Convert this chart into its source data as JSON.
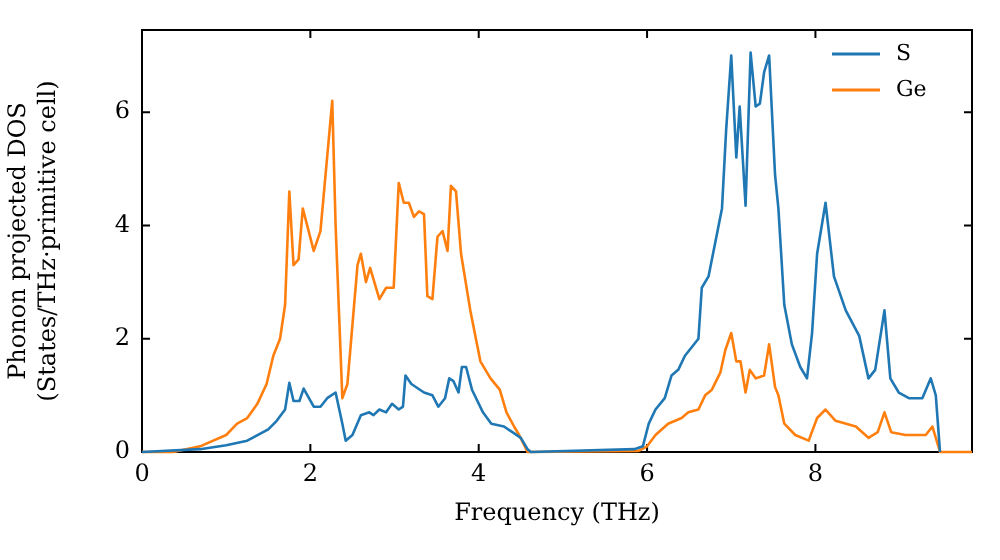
{
  "chart_data": {
    "type": "line",
    "xlabel": "Frequency (THz)",
    "ylabel": "Phonon projected DOS\n(States/THz·primitive cell)",
    "xlim": [
      0,
      9.86
    ],
    "ylim": [
      0,
      7.45
    ],
    "xticks": [
      0,
      2,
      4,
      6,
      8
    ],
    "yticks": [
      0,
      2,
      4,
      6
    ],
    "grid": false,
    "legend": "top right",
    "marker": "none",
    "line_style": "solid",
    "series": [
      {
        "name": "S",
        "color": "#1f77b4",
        "x": [
          0,
          0.69,
          1.0,
          1.25,
          1.5,
          1.6,
          1.7,
          1.75,
          1.8,
          1.87,
          1.92,
          2.04,
          2.12,
          2.2,
          2.3,
          2.38,
          2.42,
          2.5,
          2.6,
          2.7,
          2.75,
          2.82,
          2.9,
          2.97,
          3.05,
          3.1,
          3.13,
          3.2,
          3.35,
          3.45,
          3.52,
          3.6,
          3.65,
          3.7,
          3.76,
          3.8,
          3.85,
          3.92,
          4.05,
          4.15,
          4.3,
          4.4,
          4.5,
          4.58,
          4.62,
          5.85,
          5.95,
          6.02,
          6.1,
          6.21,
          6.29,
          6.37,
          6.45,
          6.53,
          6.61,
          6.65,
          6.73,
          6.81,
          6.89,
          6.94,
          7.0,
          7.06,
          7.1,
          7.17,
          7.23,
          7.29,
          7.34,
          7.39,
          7.45,
          7.52,
          7.56,
          7.63,
          7.72,
          7.82,
          7.9,
          7.96,
          8.02,
          8.12,
          8.22,
          8.36,
          8.52,
          8.63,
          8.71,
          8.82,
          8.89,
          8.99,
          9.11,
          9.27,
          9.37,
          9.43,
          9.48
        ],
        "values": [
          0,
          0.05,
          0.12,
          0.2,
          0.4,
          0.55,
          0.75,
          1.22,
          0.9,
          0.9,
          1.12,
          0.8,
          0.8,
          0.95,
          1.05,
          0.5,
          0.2,
          0.3,
          0.65,
          0.7,
          0.65,
          0.75,
          0.7,
          0.85,
          0.75,
          0.8,
          1.35,
          1.2,
          1.05,
          1.0,
          0.8,
          0.95,
          1.3,
          1.25,
          1.05,
          1.5,
          1.5,
          1.1,
          0.7,
          0.5,
          0.45,
          0.35,
          0.25,
          0.05,
          0,
          0.05,
          0.1,
          0.5,
          0.75,
          0.95,
          1.35,
          1.45,
          1.7,
          1.85,
          2.0,
          2.9,
          3.1,
          3.7,
          4.3,
          5.7,
          7.0,
          5.2,
          6.1,
          4.35,
          7.05,
          6.1,
          6.15,
          6.7,
          7.0,
          4.9,
          4.3,
          2.6,
          1.9,
          1.5,
          1.3,
          2.1,
          3.5,
          4.4,
          3.1,
          2.5,
          2.05,
          1.3,
          1.45,
          2.5,
          1.3,
          1.05,
          0.95,
          0.95,
          1.3,
          1.0,
          0
        ]
      },
      {
        "name": "Ge",
        "color": "#ff7f0e",
        "x": [
          0,
          0.37,
          0.69,
          1.0,
          1.13,
          1.25,
          1.37,
          1.48,
          1.56,
          1.64,
          1.7,
          1.75,
          1.8,
          1.86,
          1.91,
          2.04,
          2.12,
          2.26,
          2.3,
          2.38,
          2.44,
          2.56,
          2.6,
          2.66,
          2.71,
          2.82,
          2.9,
          2.99,
          3.05,
          3.11,
          3.17,
          3.23,
          3.29,
          3.35,
          3.39,
          3.45,
          3.51,
          3.57,
          3.63,
          3.67,
          3.73,
          3.79,
          3.9,
          4.02,
          4.14,
          4.25,
          4.33,
          4.42,
          4.48,
          4.58,
          5.9,
          6.0,
          6.1,
          6.25,
          6.41,
          6.49,
          6.61,
          6.69,
          6.77,
          6.87,
          6.93,
          7.0,
          7.06,
          7.11,
          7.17,
          7.22,
          7.29,
          7.39,
          7.45,
          7.52,
          7.56,
          7.63,
          7.76,
          7.92,
          8.02,
          8.12,
          8.24,
          8.48,
          8.63,
          8.74,
          8.82,
          8.9,
          9.07,
          9.31,
          9.39,
          9.48,
          9.86
        ],
        "values": [
          0,
          0,
          0.1,
          0.3,
          0.5,
          0.6,
          0.85,
          1.2,
          1.7,
          2.0,
          2.6,
          4.6,
          3.3,
          3.4,
          4.3,
          3.55,
          3.9,
          6.2,
          4.0,
          0.95,
          1.2,
          3.3,
          3.5,
          3.0,
          3.25,
          2.7,
          2.9,
          2.9,
          4.75,
          4.4,
          4.4,
          4.15,
          4.25,
          4.2,
          2.75,
          2.7,
          3.8,
          3.9,
          3.55,
          4.7,
          4.6,
          3.5,
          2.5,
          1.6,
          1.3,
          1.1,
          0.7,
          0.45,
          0.3,
          0,
          0.02,
          0.1,
          0.3,
          0.5,
          0.6,
          0.7,
          0.75,
          1.0,
          1.1,
          1.4,
          1.8,
          2.1,
          1.6,
          1.6,
          1.05,
          1.45,
          1.3,
          1.35,
          1.9,
          1.15,
          1.0,
          0.5,
          0.3,
          0.2,
          0.6,
          0.75,
          0.55,
          0.45,
          0.25,
          0.35,
          0.7,
          0.35,
          0.3,
          0.3,
          0.45,
          0,
          0
        ]
      }
    ]
  }
}
